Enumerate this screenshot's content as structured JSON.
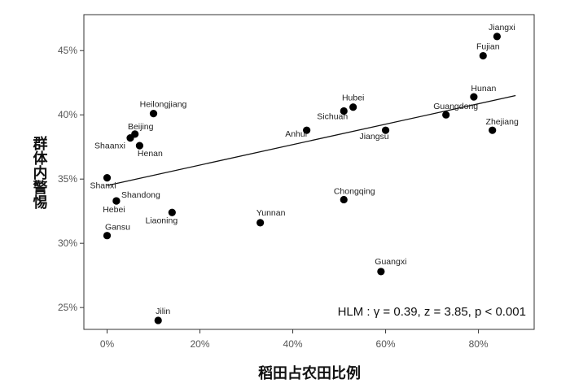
{
  "chart_data": {
    "type": "scatter",
    "xlabel": "稻田占农田比例",
    "ylabel": "群体内警惕",
    "xlim": [
      -5,
      92
    ],
    "ylim": [
      23.3,
      47.8
    ],
    "x_ticks": [
      0,
      20,
      40,
      60,
      80
    ],
    "x_tick_labels": [
      "0%",
      "20%",
      "40%",
      "60%",
      "80%"
    ],
    "y_ticks": [
      25,
      30,
      35,
      40,
      45
    ],
    "y_tick_labels": [
      "25%",
      "30%",
      "35%",
      "40%",
      "45%"
    ],
    "grid": false,
    "annotation": "HLM : γ = 0.39, z = 3.85, p < 0.001",
    "points": [
      {
        "label": "Jiangxi",
        "x": 84,
        "y": 46.1
      },
      {
        "label": "Fujian",
        "x": 81,
        "y": 44.6
      },
      {
        "label": "Hunan",
        "x": 79,
        "y": 41.4
      },
      {
        "label": "Guangdong",
        "x": 73,
        "y": 40.0
      },
      {
        "label": "Zhejiang",
        "x": 83,
        "y": 38.8
      },
      {
        "label": "Hubei",
        "x": 53,
        "y": 40.6
      },
      {
        "label": "Sichuan",
        "x": 51,
        "y": 40.3
      },
      {
        "label": "Jiangsu",
        "x": 60,
        "y": 38.8
      },
      {
        "label": "Anhui",
        "x": 43,
        "y": 38.8
      },
      {
        "label": "Heilongjiang",
        "x": 10,
        "y": 40.1
      },
      {
        "label": "Beijing",
        "x": 6,
        "y": 38.5
      },
      {
        "label": "Shaanxi",
        "x": 5,
        "y": 38.2
      },
      {
        "label": "Henan",
        "x": 7,
        "y": 37.6
      },
      {
        "label": "Shanxi",
        "x": 0,
        "y": 35.1
      },
      {
        "label": "Shandong",
        "x": 2,
        "y": 33.3
      },
      {
        "label": "Hebei",
        "x": 2,
        "y": 33.3
      },
      {
        "label": "Liaoning",
        "x": 14,
        "y": 32.4
      },
      {
        "label": "Yunnan",
        "x": 33,
        "y": 31.6
      },
      {
        "label": "Chongqing",
        "x": 51,
        "y": 33.4
      },
      {
        "label": "Gansu",
        "x": 0,
        "y": 30.6
      },
      {
        "label": "Guangxi",
        "x": 59,
        "y": 27.8
      },
      {
        "label": "Jilin",
        "x": 11,
        "y": 24.0
      }
    ],
    "trendline": {
      "x": [
        0,
        88
      ],
      "y": [
        34.5,
        41.5
      ]
    }
  }
}
